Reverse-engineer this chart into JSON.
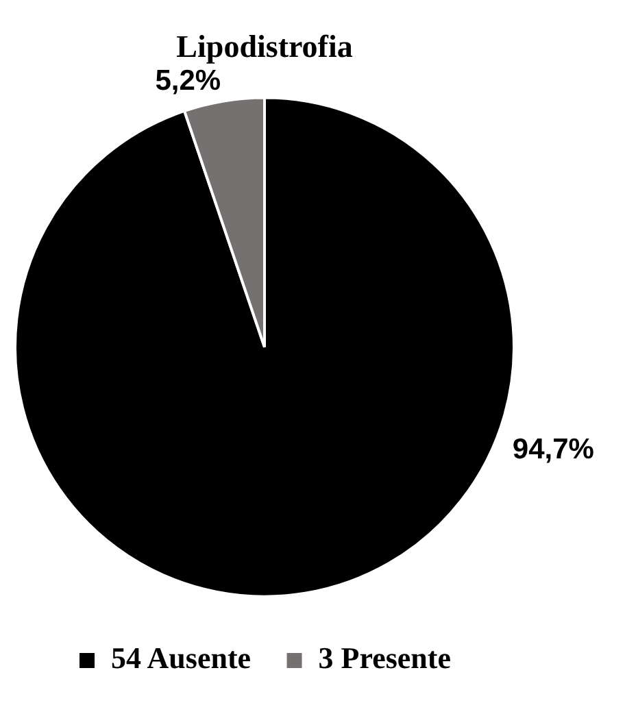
{
  "chart_data": {
    "type": "pie",
    "title": "Lipodistrofia",
    "categories": [
      "54 Ausente",
      "3 Presente"
    ],
    "values": [
      94.7,
      5.2
    ],
    "colors": [
      "#000000",
      "#767171"
    ],
    "value_labels": [
      "94,7%",
      "5,2%"
    ],
    "legend": "bottom"
  }
}
